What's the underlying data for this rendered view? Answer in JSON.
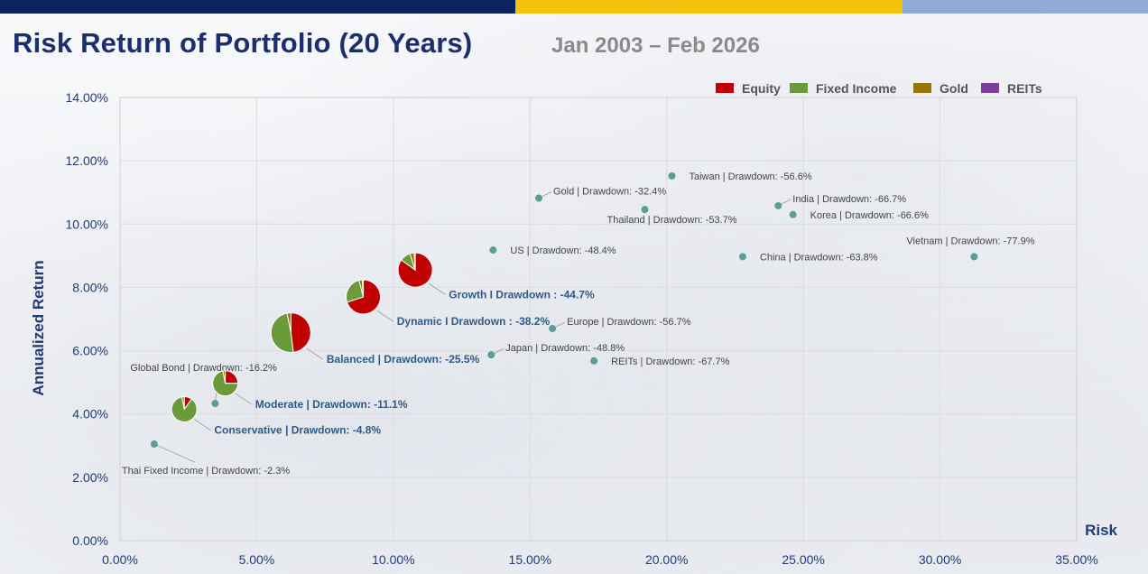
{
  "header": {
    "title": "Risk Return of Portfolio (20 Years)",
    "subtitle": "Jan 2003 – Feb 2026"
  },
  "colors": {
    "topbar": [
      "#0d2260",
      "#f5c211",
      "#8fa9d8"
    ],
    "equity": "#c00000",
    "fixed_income": "#6a9a3a",
    "gold": "#9a7400",
    "reits": "#7e3fa0",
    "marker": "#5a9e9a",
    "title": "#1b2f6e"
  },
  "chart_data": {
    "type": "scatter",
    "xlabel": "Risk",
    "ylabel": "Annualized Return",
    "xlim": [
      0,
      0.35
    ],
    "ylim": [
      0,
      0.14
    ],
    "x_ticks": [
      0,
      0.05,
      0.1,
      0.15,
      0.2,
      0.25,
      0.3,
      0.35
    ],
    "y_ticks": [
      0,
      0.02,
      0.04,
      0.06,
      0.08,
      0.1,
      0.12,
      0.14
    ],
    "x_tick_labels": [
      "0.00%",
      "5.00%",
      "10.00%",
      "15.00%",
      "20.00%",
      "25.00%",
      "30.00%",
      "35.00%"
    ],
    "y_tick_labels": [
      "0.00%",
      "2.00%",
      "4.00%",
      "6.00%",
      "8.00%",
      "10.00%",
      "12.00%",
      "14.00%"
    ],
    "grid": true,
    "legend_position": "top-right",
    "legend": [
      "Equity",
      "Fixed Income",
      "Gold",
      "REITs"
    ],
    "assets": [
      {
        "label": "Thai Fixed Income | Drawdown: -2.3%",
        "x": 0.0125,
        "y": 0.0305,
        "anchor": "below-leader"
      },
      {
        "label": "Global Bond | Drawdown: -16.2%",
        "x": 0.0348,
        "y": 0.0433,
        "anchor": "above-left"
      },
      {
        "label": "Japan | Drawdown: -48.8%",
        "x": 0.1358,
        "y": 0.0587,
        "anchor": "right-up"
      },
      {
        "label": "REITs | Drawdown: -67.7%",
        "x": 0.1734,
        "y": 0.0568,
        "anchor": "right"
      },
      {
        "label": "Europe | Drawdown: -56.7%",
        "x": 0.1582,
        "y": 0.067,
        "anchor": "right-up"
      },
      {
        "label": "US | Drawdown: -48.4%",
        "x": 0.1365,
        "y": 0.0918,
        "anchor": "right"
      },
      {
        "label": "Gold | Drawdown: -32.4%",
        "x": 0.1532,
        "y": 0.1082,
        "anchor": "right-up"
      },
      {
        "label": "Thailand | Drawdown: -53.7%",
        "x": 0.192,
        "y": 0.1046,
        "anchor": "below"
      },
      {
        "label": "Taiwan | Drawdown: -56.6%",
        "x": 0.2019,
        "y": 0.1152,
        "anchor": "right"
      },
      {
        "label": "China | Drawdown: -63.8%",
        "x": 0.2278,
        "y": 0.0897,
        "anchor": "right"
      },
      {
        "label": "India | Drawdown: -66.7%",
        "x": 0.2408,
        "y": 0.1058,
        "anchor": "right-up"
      },
      {
        "label": "Korea | Drawdown: -66.6%",
        "x": 0.2462,
        "y": 0.103,
        "anchor": "right"
      },
      {
        "label": "Vietnam | Drawdown: -77.9%",
        "x": 0.3125,
        "y": 0.0897,
        "anchor": "above"
      }
    ],
    "portfolios": [
      {
        "label": "Conservative | Drawdown: -4.8%",
        "x": 0.0235,
        "y": 0.0415,
        "size": 14,
        "weights": {
          "equity": 0.1,
          "fixed_income": 0.87,
          "gold": 0.03,
          "reits": 0.0
        }
      },
      {
        "label": "Moderate | Drawdown: -11.1%",
        "x": 0.0385,
        "y": 0.0497,
        "size": 14,
        "weights": {
          "equity": 0.25,
          "fixed_income": 0.72,
          "gold": 0.03,
          "reits": 0.0
        }
      },
      {
        "label": "Balanced | Drawdown: -25.5%",
        "x": 0.0625,
        "y": 0.0657,
        "size": 22,
        "weights": {
          "equity": 0.48,
          "fixed_income": 0.49,
          "gold": 0.03,
          "reits": 0.0
        }
      },
      {
        "label": "Dynamic I Drawdown : -38.2%",
        "x": 0.089,
        "y": 0.077,
        "size": 19,
        "weights": {
          "equity": 0.7,
          "fixed_income": 0.26,
          "gold": 0.03,
          "reits": 0.01
        }
      },
      {
        "label": "Growth I Drawdown : -44.7%",
        "x": 0.108,
        "y": 0.0855,
        "size": 19,
        "weights": {
          "equity": 0.85,
          "fixed_income": 0.1,
          "gold": 0.04,
          "reits": 0.01
        }
      }
    ]
  }
}
